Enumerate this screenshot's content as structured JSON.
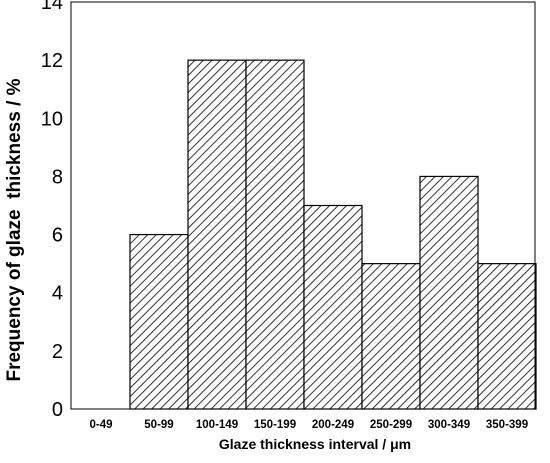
{
  "chart_data": {
    "type": "bar",
    "title": "",
    "xlabel": "Glaze thickness interval / μm",
    "ylabel": "Frequency of glaze  thickness / %",
    "categories": [
      "0-49",
      "50-99",
      "100-149",
      "150-199",
      "200-249",
      "250-299",
      "300-349",
      "350-399"
    ],
    "values": [
      0,
      6,
      12,
      12,
      7,
      5,
      8,
      5
    ],
    "ylim": [
      0,
      14
    ],
    "yticks": [
      "0",
      "2",
      "4",
      "6",
      "8",
      "10",
      "12",
      "14"
    ],
    "grid": false,
    "legend": "none",
    "bar_pattern": "diagonal-hatch",
    "colors": {
      "bar_fill": "#ffffff",
      "hatch": "#000000",
      "axis": "#000000"
    }
  }
}
